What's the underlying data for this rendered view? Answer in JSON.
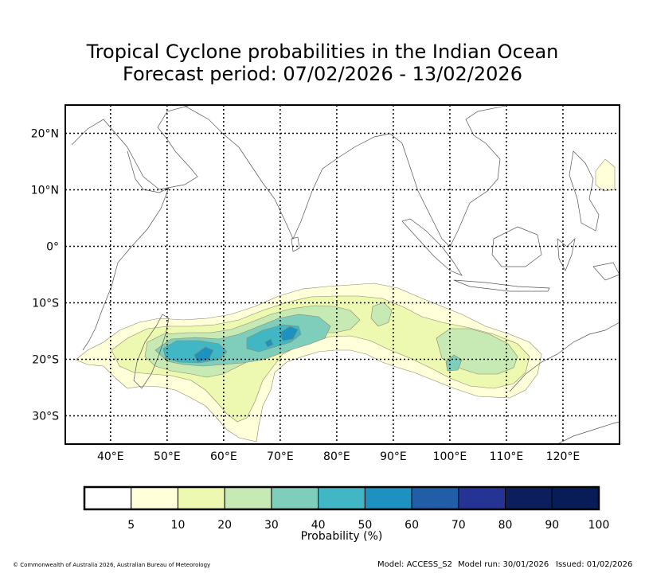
{
  "title_line1": "Tropical Cyclone probabilities in the Indian Ocean",
  "title_line2": "Forecast period: 07/02/2026 - 13/02/2026",
  "map": {
    "lon_range": [
      32,
      130
    ],
    "lat_range": [
      -35,
      25
    ],
    "lon_ticks": [
      40,
      50,
      60,
      70,
      80,
      90,
      100,
      110,
      120
    ],
    "lat_ticks": [
      20,
      10,
      0,
      -10,
      -20,
      -30
    ],
    "lon_labels": [
      "40°E",
      "50°E",
      "60°E",
      "70°E",
      "80°E",
      "90°E",
      "100°E",
      "110°E",
      "120°E"
    ],
    "lat_labels": [
      "20°N",
      "10°N",
      "0°",
      "10°S",
      "20°S",
      "30°S"
    ]
  },
  "colorbar": {
    "label": "Probability (%)",
    "ticks": [
      "5",
      "10",
      "20",
      "30",
      "40",
      "50",
      "60",
      "70",
      "80",
      "90",
      "100"
    ],
    "colors": [
      "#ffffff",
      "#ffffd9",
      "#edf8b1",
      "#c7e9b4",
      "#7fcdbb",
      "#41b6c4",
      "#1d91c0",
      "#225ea8",
      "#253494",
      "#0c1f5c",
      "#081d58"
    ]
  },
  "footer": {
    "copyright": "© Commonwealth of Australia 2026, Australian Bureau of Meteorology",
    "model": "Model: ACCESS_S2",
    "model_run": "Model run: 30/01/2026",
    "issued": "Issued: 01/02/2026"
  }
}
